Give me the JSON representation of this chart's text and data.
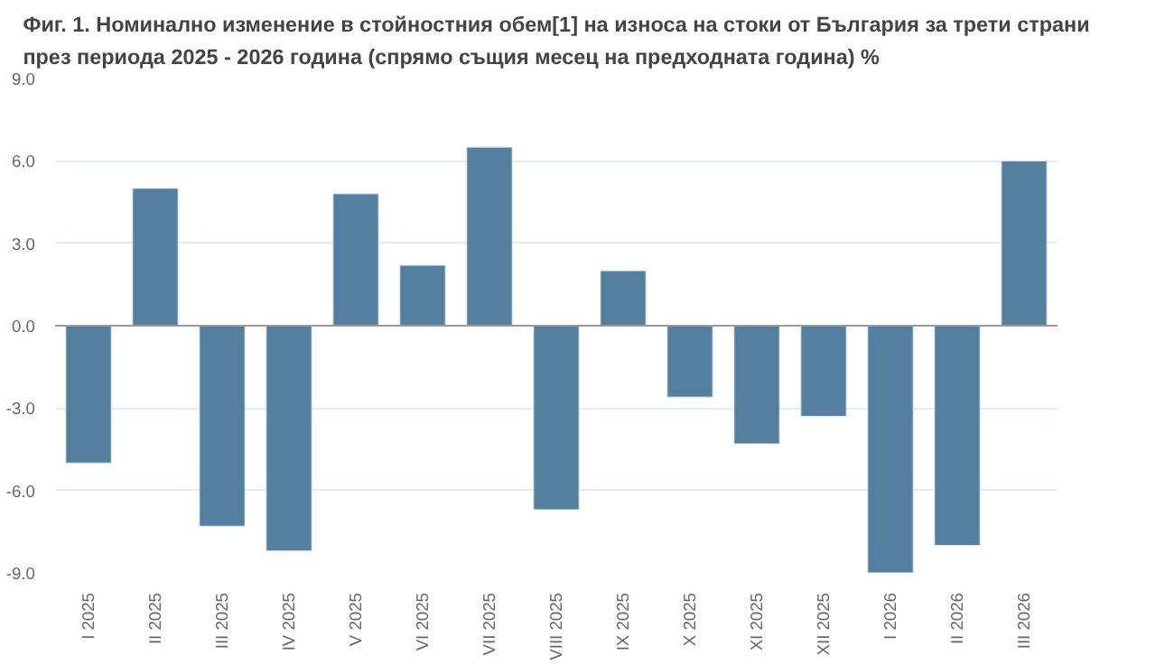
{
  "chart_data": {
    "type": "bar",
    "title": "Фиг. 1. Номинално изменение в стойностния обем[1] на износа на стоки от България за трети страни\nпрез периода 2025 - 2026 година (спрямо същия месец на предходната година) %",
    "categories": [
      "I 2025",
      "II 2025",
      "III 2025",
      "IV 2025",
      "V 2025",
      "VI 2025",
      "VII 2025",
      "VIII 2025",
      "IX 2025",
      "X 2025",
      "XI 2025",
      "XII 2025",
      "I 2026",
      "II 2026",
      "III 2026"
    ],
    "values": [
      -5.0,
      5.0,
      -7.3,
      -8.2,
      4.8,
      2.2,
      6.5,
      -6.7,
      2.0,
      -2.6,
      -4.3,
      -3.3,
      -9.0,
      -8.0,
      6.0
    ],
    "color": "#557f9f",
    "ylim": [
      -9,
      9
    ],
    "yticks": [
      {
        "value": -9,
        "label": "-9.0"
      },
      {
        "value": -6,
        "label": "-6.0"
      },
      {
        "value": -3,
        "label": "-3.0"
      },
      {
        "value": 0,
        "label": "0.0"
      },
      {
        "value": 3,
        "label": "3.0"
      },
      {
        "value": 6,
        "label": "6.0"
      },
      {
        "value": 9,
        "label": "9.0"
      }
    ],
    "grid": "y"
  }
}
